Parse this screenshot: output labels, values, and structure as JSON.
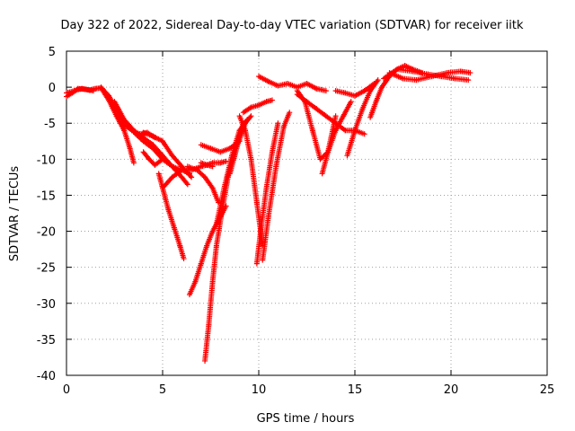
{
  "chart_data": {
    "type": "scatter",
    "title": "Day 322 of 2022, Sidereal Day-to-day VTEC variation (SDTVAR) for receiver iitk",
    "xlabel": "GPS time / hours",
    "ylabel": "SDTVAR / TECUs",
    "xlim": [
      0,
      25
    ],
    "ylim": [
      -40,
      5
    ],
    "xticks": [
      0,
      5,
      10,
      15,
      20,
      25
    ],
    "yticks": [
      5,
      0,
      -5,
      -10,
      -15,
      -20,
      -25,
      -30,
      -35,
      -40
    ],
    "xtick_labels": [
      "0",
      "5",
      "10",
      "15",
      "20",
      "25"
    ],
    "ytick_labels": [
      "5",
      "0",
      "-5",
      "-10",
      "-15",
      "-20",
      "-25",
      "-30",
      "-35",
      "-40"
    ],
    "grid": true,
    "marker": "+",
    "color": "#ff0000",
    "series": [
      {
        "x": [
          0,
          0.3,
          0.6,
          1.0,
          1.4
        ],
        "y": [
          -1.3,
          -0.8,
          -0.2,
          -0.3,
          -0.5
        ]
      },
      {
        "x": [
          0,
          0.4,
          0.8,
          1.2,
          1.5
        ],
        "y": [
          -0.8,
          -0.5,
          -0.2,
          -0.4,
          -0.2
        ]
      },
      {
        "x": [
          1.5,
          1.8,
          2.2,
          2.6,
          3.0,
          3.3,
          3.5
        ],
        "y": [
          -0.2,
          -0.1,
          -1.8,
          -4.0,
          -6.0,
          -8.5,
          -10.5
        ]
      },
      {
        "x": [
          1.8,
          2.2,
          2.6,
          3.0,
          3.4,
          3.8,
          4.2,
          4.6
        ],
        "y": [
          0,
          -1.2,
          -3.0,
          -5.2,
          -6.0,
          -6.5,
          -6.3,
          -7.0
        ]
      },
      {
        "x": [
          2.5,
          3.0,
          3.5,
          4.0,
          4.5,
          5.0,
          5.5,
          6.0,
          6.3
        ],
        "y": [
          -2.0,
          -4.5,
          -6.0,
          -7.0,
          -8.0,
          -9.5,
          -11.0,
          -12.5,
          -13.5
        ]
      },
      {
        "x": [
          3.2,
          3.6,
          4.0,
          4.5,
          5.0,
          5.5,
          6.0,
          6.4
        ],
        "y": [
          -5.2,
          -6.5,
          -7.5,
          -8.5,
          -10.0,
          -11.0,
          -11.5,
          -12.0
        ]
      },
      {
        "x": [
          4.0,
          4.5,
          5.0,
          5.5,
          6.0,
          6.5
        ],
        "y": [
          -6.3,
          -6.8,
          -7.5,
          -9.5,
          -11.0,
          -12.5
        ]
      },
      {
        "x": [
          4.0,
          4.3,
          4.6,
          5.0
        ],
        "y": [
          -9.0,
          -10.0,
          -10.8,
          -10.0
        ]
      },
      {
        "x": [
          4.8,
          5.0,
          5.3,
          5.6,
          5.9,
          6.1
        ],
        "y": [
          -12.0,
          -14.0,
          -17.0,
          -19.5,
          -22.0,
          -23.8
        ]
      },
      {
        "x": [
          5.0,
          5.5,
          6.0,
          6.5,
          7.0,
          7.3,
          7.6
        ],
        "y": [
          -14.0,
          -12.5,
          -11.5,
          -11.5,
          -11.0,
          -10.8,
          -11.0
        ]
      },
      {
        "x": [
          6.3,
          6.8,
          7.2,
          7.6,
          7.9
        ],
        "y": [
          -11.0,
          -11.5,
          -12.5,
          -14.0,
          -16.0
        ]
      },
      {
        "x": [
          7.0,
          7.3,
          7.6,
          8.0,
          8.3
        ],
        "y": [
          -10.5,
          -10.8,
          -10.5,
          -10.5,
          -10.3
        ]
      },
      {
        "x": [
          6.4,
          6.7,
          7.0,
          7.3,
          7.6,
          8.0,
          8.3
        ],
        "y": [
          -28.8,
          -27.0,
          -24.5,
          -22.0,
          -20.0,
          -18.0,
          -16.5
        ]
      },
      {
        "x": [
          7.2,
          7.4,
          7.6,
          7.8,
          8.1,
          8.4,
          8.8,
          9.2
        ],
        "y": [
          -38.0,
          -33.0,
          -27.0,
          -22.0,
          -17.0,
          -12.5,
          -8.5,
          -5.0
        ]
      },
      {
        "x": [
          7.8,
          8.2,
          8.6,
          9.0,
          9.4
        ],
        "y": [
          -19.0,
          -14.0,
          -9.5,
          -6.0,
          -4.5
        ]
      },
      {
        "x": [
          8.5,
          8.9,
          9.3,
          9.6
        ],
        "y": [
          -12.0,
          -8.0,
          -5.0,
          -4.0
        ]
      },
      {
        "x": [
          7.0,
          7.5,
          8.0,
          8.5,
          9.0
        ],
        "y": [
          -8.0,
          -8.5,
          -9.0,
          -8.5,
          -7.5
        ]
      },
      {
        "x": [
          9.0,
          9.3,
          9.6,
          9.9,
          10.2
        ],
        "y": [
          -4.0,
          -6.0,
          -10.0,
          -16.0,
          -22.0
        ]
      },
      {
        "x": [
          9.2,
          9.6,
          10.0,
          10.4,
          10.7
        ],
        "y": [
          -3.5,
          -2.8,
          -2.5,
          -2.0,
          -1.8
        ]
      },
      {
        "x": [
          9.9,
          10.1,
          10.4,
          10.7,
          11.0
        ],
        "y": [
          -24.5,
          -20.0,
          -14.0,
          -9.0,
          -5.0
        ]
      },
      {
        "x": [
          10.2,
          10.5,
          10.9,
          11.3,
          11.6
        ],
        "y": [
          -24.0,
          -18.0,
          -11.0,
          -5.5,
          -3.5
        ]
      },
      {
        "x": [
          10.0,
          10.5,
          11.0,
          11.5,
          12.0,
          12.5,
          13.0,
          13.5
        ],
        "y": [
          1.5,
          0.8,
          0.2,
          0.5,
          0.0,
          0.5,
          -0.2,
          -0.5
        ]
      },
      {
        "x": [
          12.0,
          12.4,
          12.8,
          13.2,
          13.6,
          14.0
        ],
        "y": [
          -0.5,
          -2.0,
          -6.0,
          -10.0,
          -9.0,
          -4.0
        ]
      },
      {
        "x": [
          12.0,
          12.5,
          13.0,
          13.5,
          14.0,
          14.5,
          15.0,
          15.5
        ],
        "y": [
          -1.0,
          -2.0,
          -3.0,
          -4.0,
          -5.0,
          -6.0,
          -6.0,
          -6.5
        ]
      },
      {
        "x": [
          13.3,
          13.6,
          14.0,
          14.4,
          14.8
        ],
        "y": [
          -12.0,
          -9.0,
          -6.0,
          -4.0,
          -2.0
        ]
      },
      {
        "x": [
          14.0,
          14.5,
          15.0,
          15.5,
          16.0
        ],
        "y": [
          -0.5,
          -0.8,
          -1.2,
          -0.5,
          0.5
        ]
      },
      {
        "x": [
          14.6,
          15.0,
          15.4,
          15.8,
          16.2
        ],
        "y": [
          -9.5,
          -6.0,
          -3.0,
          -0.5,
          1.0
        ]
      },
      {
        "x": [
          15.8,
          16.1,
          16.4,
          16.8,
          17.2,
          17.6,
          18.0,
          18.5
        ],
        "y": [
          -4.2,
          -2.0,
          0.0,
          1.5,
          2.5,
          3.0,
          2.5,
          2.0
        ]
      },
      {
        "x": [
          16.8,
          17.5,
          18.2,
          19.0,
          19.8,
          20.5,
          21.0
        ],
        "y": [
          2.0,
          1.2,
          1.0,
          1.5,
          2.0,
          2.2,
          2.0
        ]
      },
      {
        "x": [
          16.5,
          17.2,
          18.0,
          18.8,
          19.5,
          20.2,
          20.9
        ],
        "y": [
          1.2,
          2.5,
          2.2,
          1.8,
          1.5,
          1.2,
          1.0
        ]
      }
    ]
  }
}
